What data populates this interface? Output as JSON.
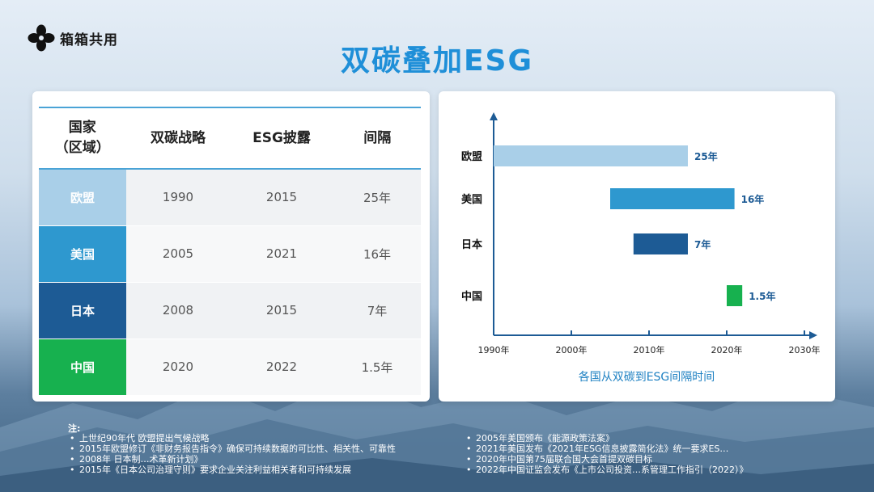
{
  "brand": {
    "logo_text": "箱箱共用"
  },
  "title": "双碳叠加ESG",
  "table": {
    "headers": [
      "国家\n（区域）",
      "双碳战略",
      "ESG披露",
      "间隔"
    ],
    "rows": [
      {
        "country": "欧盟",
        "carbon": "1990",
        "esg": "2015",
        "gap": "25年",
        "color": "#a9cfe8"
      },
      {
        "country": "美国",
        "carbon": "2005",
        "esg": "2021",
        "gap": "16年",
        "color": "#2e98cf"
      },
      {
        "country": "日本",
        "carbon": "2008",
        "esg": "2015",
        "gap": "7年",
        "color": "#1d5b95"
      },
      {
        "country": "中国",
        "carbon": "2020",
        "esg": "2022",
        "gap": "1.5年",
        "color": "#17b14f"
      }
    ]
  },
  "chart_data": {
    "type": "bar",
    "title": "各国从双碳到ESG间隔时间",
    "xlabel": "",
    "ylabel": "",
    "x_ticks": [
      "1990年",
      "2000年",
      "2010年",
      "2020年",
      "2030年"
    ],
    "xlim": [
      1990,
      2030
    ],
    "categories": [
      "欧盟",
      "美国",
      "日本",
      "中国"
    ],
    "series": [
      {
        "ranges": [
          [
            1990,
            2015
          ],
          [
            2005,
            2021
          ],
          [
            2008,
            2015
          ],
          [
            2020,
            2022
          ]
        ],
        "labels": [
          "25年",
          "16年",
          "7年",
          "1.5年"
        ],
        "colors": [
          "#a9cfe8",
          "#2e98cf",
          "#1d5b95",
          "#17b14f"
        ]
      }
    ],
    "axis_color": "#1d5b95",
    "label_color": "#1d5b95"
  },
  "notes": {
    "label": "注:",
    "left": [
      "上世纪90年代 欧盟提出气候战略",
      "2015年欧盟修订《非财务报告指令》确保可持续数据的可比性、相关性、可靠性",
      "2008年 日本制…术革新计划》",
      "2015年《日本公司治理守则》要求企业关注利益相关者和可持续发展"
    ],
    "right": [
      "2005年美国颁布《能源政策法案》",
      "2021年美国发布《2021年ESG信息披露简化法》统一要求ES…",
      "2020年中国第75届联合国大会首提双碳目标",
      "2022年中国证监会发布《上市公司投资…系管理工作指引（2022）》"
    ]
  }
}
